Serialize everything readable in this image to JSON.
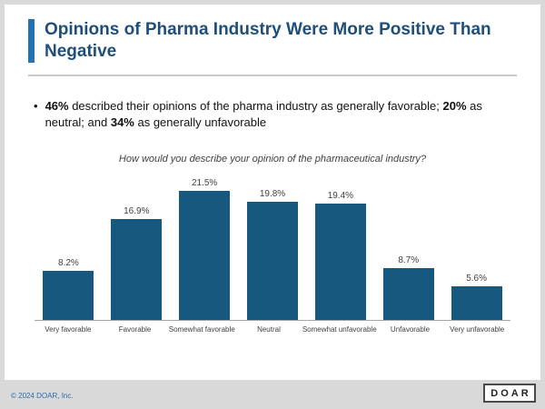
{
  "slide": {
    "title": "Opinions of Pharma Industry Were More Positive Than Negative",
    "bullet_marker": "•",
    "bullet_segments": [
      {
        "text": "46%",
        "bold": true
      },
      {
        "text": " described their opinions of the pharma industry as generally favorable; ",
        "bold": false
      },
      {
        "text": "20%",
        "bold": true
      },
      {
        "text": " as neutral; and ",
        "bold": false
      },
      {
        "text": "34%",
        "bold": true
      },
      {
        "text": " as generally unfavorable",
        "bold": false
      }
    ],
    "footer": {
      "copyright": "© 2024 DOAR, Inc.",
      "logo": "DOAR"
    }
  },
  "colors": {
    "title": "#1f4e79",
    "accent_bar": "#2272b5",
    "bar_fill": "#17587f",
    "frame_gray": "#d9d9d9"
  },
  "chart_data": {
    "type": "bar",
    "title": "How would you describe your opinion of the pharmaceutical industry?",
    "categories": [
      "Very favorable",
      "Favorable",
      "Somewhat favorable",
      "Neutral",
      "Somewhat unfavorable",
      "Unfavorable",
      "Very unfavorable"
    ],
    "values": [
      8.2,
      16.9,
      21.5,
      19.8,
      19.4,
      8.7,
      5.6
    ],
    "value_labels": [
      "8.2%",
      "16.9%",
      "21.5%",
      "19.8%",
      "19.4%",
      "8.7%",
      "5.6%"
    ],
    "xlabel": "",
    "ylabel": "",
    "ylim": [
      0,
      25
    ],
    "grid": false,
    "legend": false,
    "bar_color": "#17587f"
  }
}
